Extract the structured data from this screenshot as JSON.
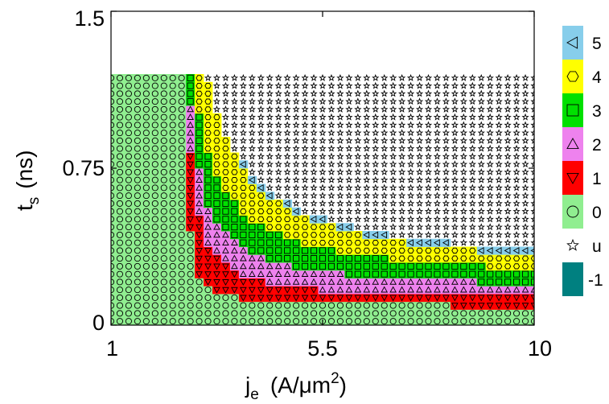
{
  "chart_data": {
    "type": "heatmap",
    "title": "",
    "xlabel": "j",
    "xlabel_sub": "e",
    "xlabel_unit_pre": "(A/μm",
    "xlabel_unit_sup": "2",
    "xlabel_unit_post": ")",
    "ylabel": "t",
    "ylabel_sub": "s",
    "ylabel_unit": "(ns)",
    "xlim": [
      1,
      10
    ],
    "ylim": [
      0,
      1.5
    ],
    "x_ticks": [
      1,
      5.5,
      10
    ],
    "x_tick_labels": [
      "1",
      "5.5",
      "10"
    ],
    "y_ticks": [
      0,
      0.75,
      1.5
    ],
    "y_tick_labels": [
      "0",
      "0.75",
      "1.5"
    ],
    "grid": false,
    "legend_position": "right",
    "grid_extent": {
      "x_min": 1.0,
      "x_max": 10.0,
      "x_step": 0.1875,
      "y_min": 0.0,
      "y_max": 1.2,
      "y_step": 0.0375
    },
    "switching_threshold_j": 2.6,
    "boundary_times_ns_by_state": {
      "description": "upper time boundary of each state band as function of current density, t = a / (j - j0) + c",
      "0": {
        "a": 0.05,
        "j0": 2.55,
        "c": 0.085
      },
      "1": {
        "a": 0.17,
        "j0": 2.45,
        "c": 0.11
      },
      "2": {
        "a": 0.3,
        "j0": 2.35,
        "c": 0.16
      },
      "3": {
        "a": 0.55,
        "j0": 2.2,
        "c": 0.2
      },
      "4": {
        "a": 0.9,
        "j0": 2.1,
        "c": 0.22
      }
    },
    "states": [
      {
        "key": "5",
        "label": "5",
        "color": "#87ceeb",
        "marker": "triangle-left"
      },
      {
        "key": "4",
        "label": "4",
        "color": "#ffff00",
        "marker": "hexagon"
      },
      {
        "key": "3",
        "label": "3",
        "color": "#00e000",
        "marker": "square"
      },
      {
        "key": "2",
        "label": "2",
        "color": "#ee82ee",
        "marker": "triangle-up"
      },
      {
        "key": "1",
        "label": "1",
        "color": "#ff0000",
        "marker": "triangle-down"
      },
      {
        "key": "0",
        "label": "0",
        "color": "#90ee90",
        "marker": "circle"
      },
      {
        "key": "u",
        "label": "u",
        "color": "#ffffff",
        "marker": "star"
      },
      {
        "key": "-1",
        "label": "-1",
        "color": "#008080",
        "marker": "none"
      }
    ]
  }
}
